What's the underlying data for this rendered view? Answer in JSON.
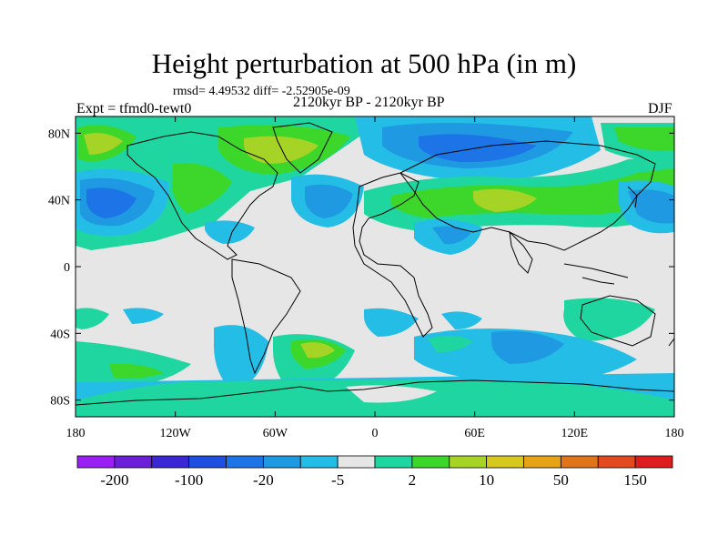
{
  "title": "Height perturbation at 500 hPa (in m)",
  "stats": "rmsd= 4.49532 diff= -2.52905e-09",
  "expt_label": "Expt = tfmd0-tewt0",
  "period_label": "2120kyr BP - 2120kyr BP",
  "season": "DJF",
  "lat_labels": [
    "80N",
    "40N",
    "0",
    "40S",
    "80S"
  ],
  "lat_values": [
    80,
    40,
    0,
    -40,
    -80
  ],
  "lon_labels": [
    "180",
    "120W",
    "60W",
    "0",
    "60E",
    "120E",
    "180"
  ],
  "lon_values": [
    -180,
    -120,
    -60,
    0,
    60,
    120,
    180
  ],
  "colorbar": {
    "colors": [
      "#9a1ff2",
      "#6b1fd8",
      "#3a28d4",
      "#1f4fe0",
      "#1c74e6",
      "#1f9ae2",
      "#24bde6",
      "#e6e6e6",
      "#20d6a0",
      "#3dd62a",
      "#a6d426",
      "#d6c81e",
      "#e6a315",
      "#e0741a",
      "#e24b1f",
      "#de1e1e"
    ],
    "labels": [
      "-200",
      "-100",
      "-20",
      "-5",
      "2",
      "10",
      "50",
      "150"
    ]
  }
}
